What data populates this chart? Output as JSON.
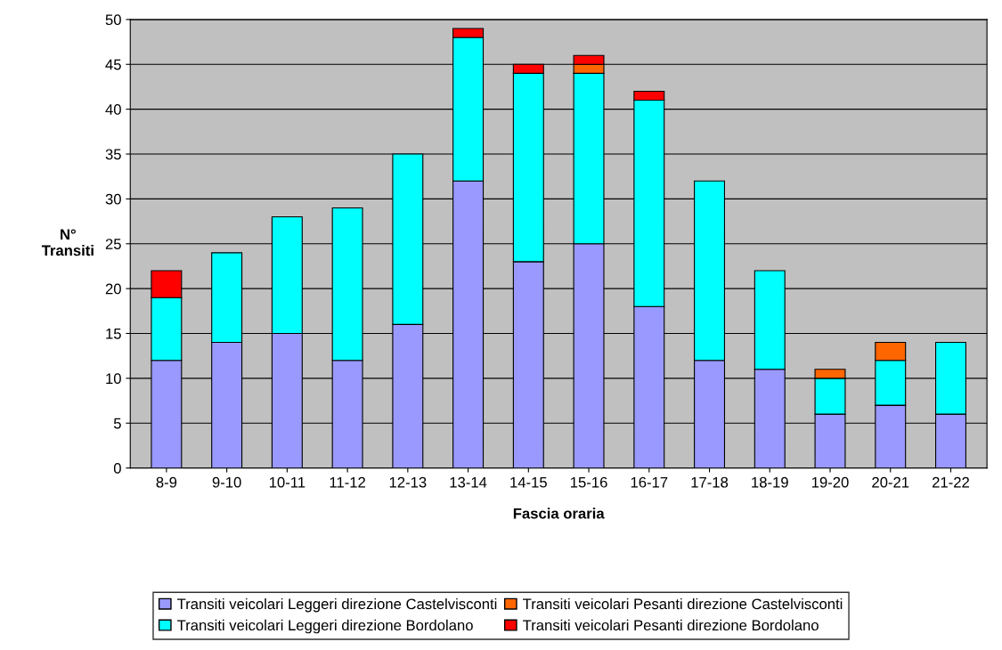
{
  "chart_data": {
    "type": "bar",
    "stacked": true,
    "xlabel": "Fascia oraria",
    "ylabel": "N°\nTransiti",
    "categories": [
      "8-9",
      "9-10",
      "10-11",
      "11-12",
      "12-13",
      "13-14",
      "14-15",
      "15-16",
      "16-17",
      "17-18",
      "18-19",
      "19-20",
      "20-21",
      "21-22"
    ],
    "series": [
      {
        "name": "Transiti veicolari Leggeri direzione Castelvisconti",
        "color": "#9999ff",
        "values": [
          12,
          14,
          15,
          12,
          16,
          32,
          23,
          25,
          18,
          12,
          11,
          6,
          7,
          6
        ]
      },
      {
        "name": "Transiti veicolari Leggeri direzione Bordolano",
        "color": "#00ffff",
        "values": [
          7,
          10,
          13,
          17,
          19,
          16,
          21,
          19,
          23,
          20,
          11,
          4,
          5,
          8
        ]
      },
      {
        "name": "Transiti veicolari Pesanti direzione Castelvisconti",
        "color": "#ff6600",
        "values": [
          0,
          0,
          0,
          0,
          0,
          0,
          0,
          1,
          0,
          0,
          0,
          1,
          2,
          0
        ]
      },
      {
        "name": "Transiti veicolari Pesanti direzione Bordolano",
        "color": "#ff0000",
        "values": [
          3,
          0,
          0,
          0,
          0,
          1,
          1,
          1,
          1,
          0,
          0,
          0,
          0,
          0
        ]
      }
    ],
    "ylim": [
      0,
      50
    ],
    "yticks": [
      0,
      5,
      10,
      15,
      20,
      25,
      30,
      35,
      40,
      45,
      50
    ],
    "grid": "y",
    "legend": "bottom"
  }
}
